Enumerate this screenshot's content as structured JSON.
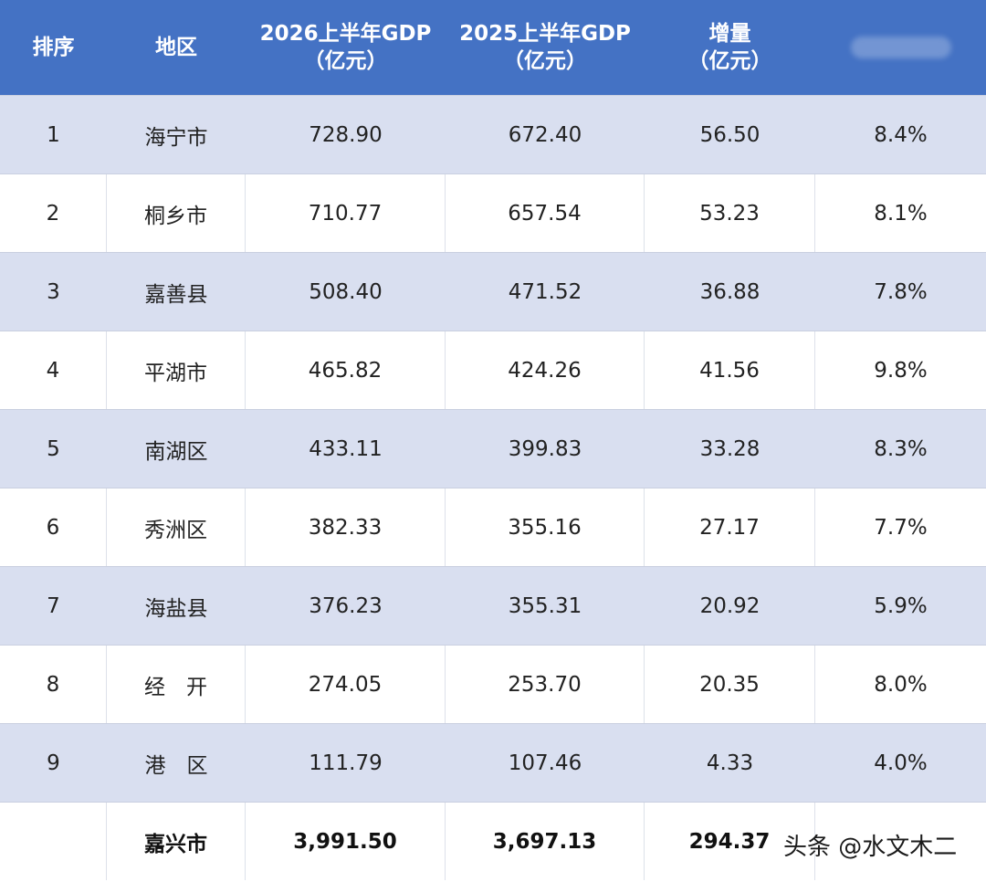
{
  "chart_data": {
    "type": "table",
    "headers": {
      "rank": "排序",
      "region": "地区",
      "gdp_2026": [
        "2026上半年GDP",
        "（亿元）"
      ],
      "gdp_2025": [
        "2025上半年GDP",
        "（亿元）"
      ],
      "increase": [
        "增量",
        "（亿元）"
      ]
    },
    "rows": [
      {
        "rank": "1",
        "region": "海宁市",
        "gdp_2026": "728.90",
        "gdp_2025": "672.40",
        "increase": "56.50",
        "growth": "8.4%"
      },
      {
        "rank": "2",
        "region": "桐乡市",
        "gdp_2026": "710.77",
        "gdp_2025": "657.54",
        "increase": "53.23",
        "growth": "8.1%"
      },
      {
        "rank": "3",
        "region": "嘉善县",
        "gdp_2026": "508.40",
        "gdp_2025": "471.52",
        "increase": "36.88",
        "growth": "7.8%"
      },
      {
        "rank": "4",
        "region": "平湖市",
        "gdp_2026": "465.82",
        "gdp_2025": "424.26",
        "increase": "41.56",
        "growth": "9.8%"
      },
      {
        "rank": "5",
        "region": "南湖区",
        "gdp_2026": "433.11",
        "gdp_2025": "399.83",
        "increase": "33.28",
        "growth": "8.3%"
      },
      {
        "rank": "6",
        "region": "秀洲区",
        "gdp_2026": "382.33",
        "gdp_2025": "355.16",
        "increase": "27.17",
        "growth": "7.7%"
      },
      {
        "rank": "7",
        "region": "海盐县",
        "gdp_2026": "376.23",
        "gdp_2025": "355.31",
        "increase": "20.92",
        "growth": "5.9%"
      },
      {
        "rank": "8",
        "region": "经　开",
        "gdp_2026": "274.05",
        "gdp_2025": "253.70",
        "increase": "20.35",
        "growth": "8.0%"
      },
      {
        "rank": "9",
        "region": "港　区",
        "gdp_2026": "111.79",
        "gdp_2025": "107.46",
        "increase": "4.33",
        "growth": "4.0%"
      }
    ],
    "total": {
      "rank": "",
      "region": "嘉兴市",
      "gdp_2026": "3,991.50",
      "gdp_2025": "3,697.13",
      "increase": "294.37"
    }
  },
  "credit": "头条 @水文木二",
  "colors": {
    "header_bg": "#4472c4",
    "header_text": "#ffffff",
    "row_shade": "#d9dff0",
    "row_plain": "#ffffff",
    "text": "#222222"
  }
}
